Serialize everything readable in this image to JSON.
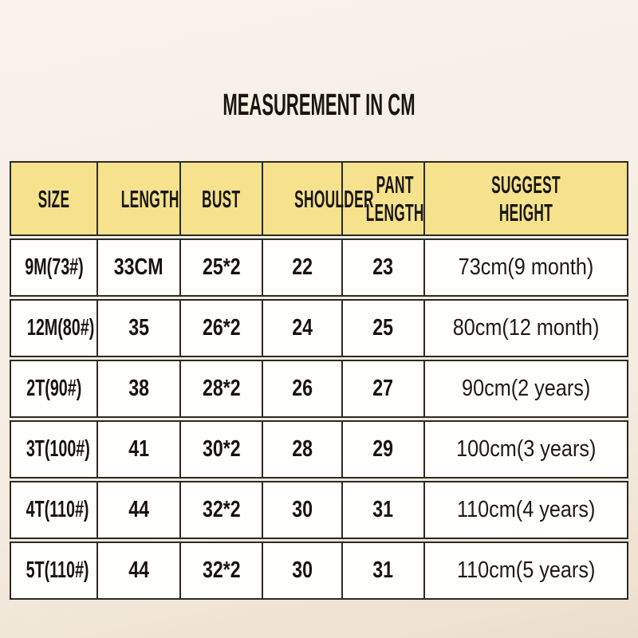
{
  "page": {
    "title": "MEASUREMENT IN CM"
  },
  "table": {
    "columns": [
      "SIZE",
      "LENGTH",
      "BUST",
      "SHOULDER",
      "PANT LENGTH",
      "SUGGEST HEIGHT"
    ],
    "rows": [
      [
        "9M(73#)",
        "33CM",
        "25*2",
        "22",
        "23",
        "73cm(9 month)"
      ],
      [
        "12M(80#)",
        "35",
        "26*2",
        "24",
        "25",
        "80cm(12 month)"
      ],
      [
        "2T(90#)",
        "38",
        "28*2",
        "26",
        "27",
        "90cm(2 years)"
      ],
      [
        "3T(100#)",
        "41",
        "30*2",
        "28",
        "29",
        "100cm(3 years)"
      ],
      [
        "4T(110#)",
        "44",
        "32*2",
        "30",
        "31",
        "110cm(4 years)"
      ],
      [
        "5T(110#)",
        "44",
        "32*2",
        "30",
        "31",
        "110cm(5 years)"
      ]
    ],
    "colors": {
      "header_bg": "#f6e28c",
      "row_bg": "#fffefd",
      "border": "#2b2a22",
      "text": "#151411",
      "page_bg_top": "#f8f2e9",
      "page_bg_bottom": "#ebdecb"
    }
  }
}
